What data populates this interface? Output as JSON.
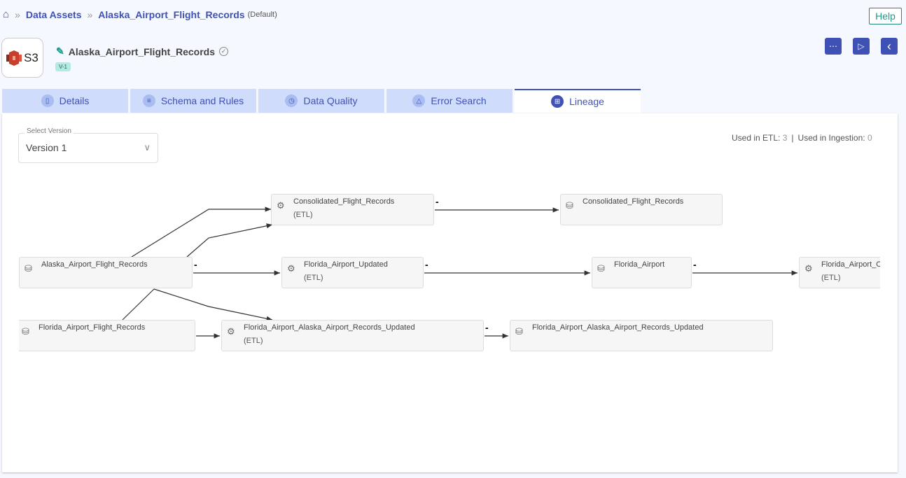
{
  "breadcrumb": {
    "home_icon": "home-icon",
    "items": [
      "Data Assets",
      "Alaska_Airport_Flight_Records"
    ],
    "default_label": "(Default)"
  },
  "help_label": "Help",
  "asset": {
    "logo_text": "S3",
    "title": "Alaska_Airport_Flight_Records",
    "version_badge": "V-1"
  },
  "actions": {
    "more": "⋯",
    "run": "▷",
    "back": "‹"
  },
  "tabs": [
    {
      "label": "Details",
      "icon": "document-icon"
    },
    {
      "label": "Schema and Rules",
      "icon": "database-icon"
    },
    {
      "label": "Data Quality",
      "icon": "history-icon"
    },
    {
      "label": "Error Search",
      "icon": "warning-icon"
    },
    {
      "label": "Lineage",
      "icon": "sitemap-icon",
      "active": true
    }
  ],
  "version_select": {
    "label": "Select Version",
    "value": "Version 1"
  },
  "usage": {
    "etl_label": "Used in ETL:",
    "etl_count": "3",
    "ingestion_label": "Used in Ingestion:",
    "ingestion_count": "0"
  },
  "lineage": {
    "edge_label": "-",
    "nodes": [
      {
        "id": "cfr_etl",
        "label": "Consolidated_Flight_Records",
        "type": "(ETL)"
      },
      {
        "id": "cfr_ds",
        "label": "Consolidated_Flight_Records",
        "type": ""
      },
      {
        "id": "aafr_ds",
        "label": "Alaska_Airport_Flight_Records",
        "type": ""
      },
      {
        "id": "fau_etl",
        "label": "Florida_Airport_Updated",
        "type": "(ETL)"
      },
      {
        "id": "fa_ds",
        "label": "Florida_Airport",
        "type": ""
      },
      {
        "id": "fao_etl",
        "label": "Florida_Airport_Ou",
        "type": "(ETL)"
      },
      {
        "id": "fafr_ds",
        "label": "Florida_Airport_Flight_Records",
        "type": ""
      },
      {
        "id": "faaa_etl",
        "label": "Florida_Airport_Alaska_Airport_Records_Updated",
        "type": "(ETL)"
      },
      {
        "id": "faaa_ds",
        "label": "Florida_Airport_Alaska_Airport_Records_Updated",
        "type": ""
      }
    ]
  }
}
